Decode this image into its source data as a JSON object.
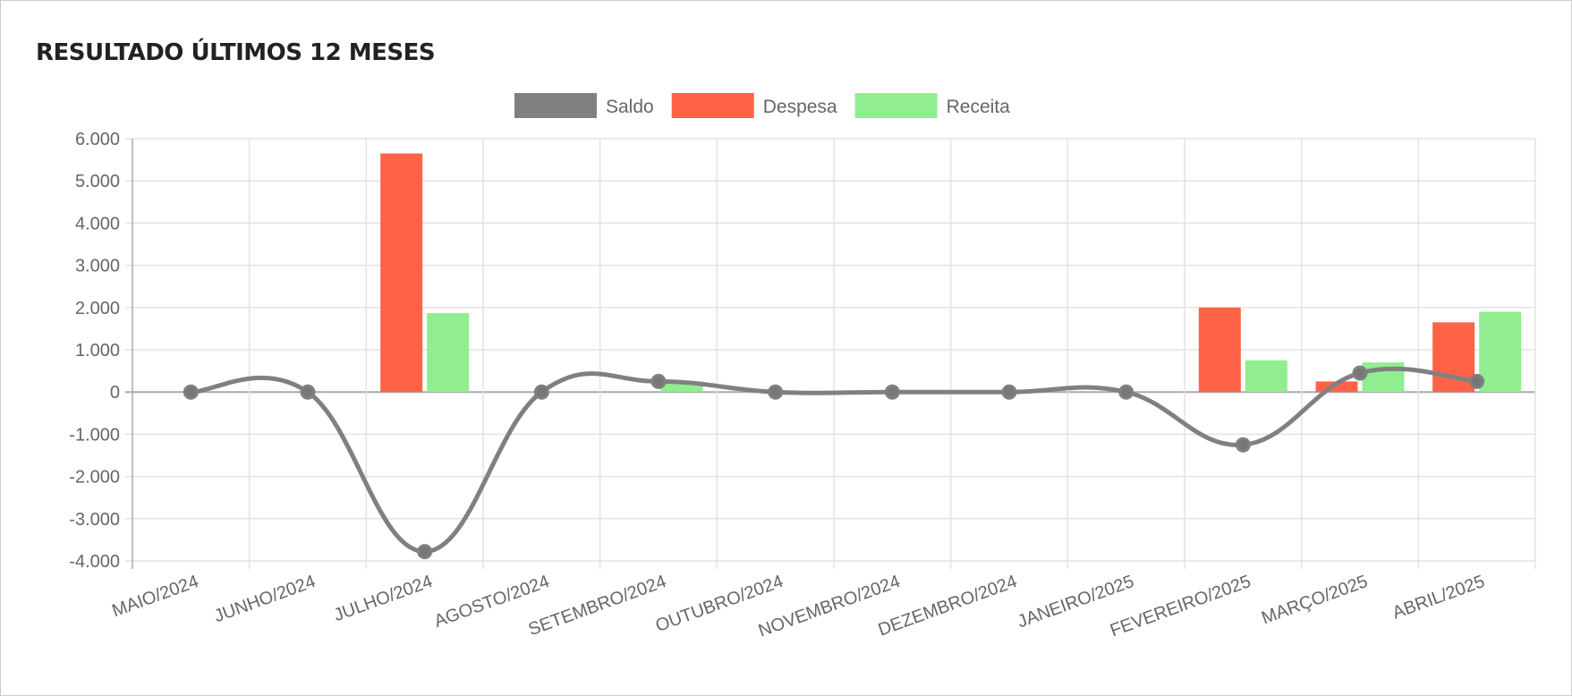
{
  "title": "RESULTADO ÚLTIMOS 12 MESES",
  "chart_data": {
    "type": "bar",
    "title": "RESULTADO ÚLTIMOS 12 MESES",
    "categories": [
      "MAIO/2024",
      "JUNHO/2024",
      "JULHO/2024",
      "AGOSTO/2024",
      "SETEMBRO/2024",
      "OUTUBRO/2024",
      "NOVEMBRO/2024",
      "DEZEMBRO/2024",
      "JANEIRO/2025",
      "FEVEREIRO/2025",
      "MARÇO/2025",
      "ABRIL/2025"
    ],
    "series": [
      {
        "name": "Saldo",
        "type": "line",
        "color": "#808080",
        "values": [
          0,
          0,
          -3780,
          0,
          250,
          0,
          0,
          0,
          0,
          -1250,
          450,
          250
        ]
      },
      {
        "name": "Despesa",
        "type": "bar",
        "color": "#ff6347",
        "values": [
          0,
          0,
          5650,
          0,
          0,
          0,
          0,
          0,
          0,
          2000,
          250,
          1650
        ]
      },
      {
        "name": "Receita",
        "type": "bar",
        "color": "#90ee90",
        "values": [
          0,
          0,
          1870,
          0,
          250,
          0,
          0,
          0,
          0,
          750,
          700,
          1900
        ]
      }
    ],
    "ylim": [
      -4000,
      6000
    ],
    "yticks": [
      6000,
      5000,
      4000,
      3000,
      2000,
      1000,
      0,
      -1000,
      -2000,
      -3000,
      -4000
    ],
    "ytick_labels": [
      "6.000",
      "5.000",
      "4.000",
      "3.000",
      "2.000",
      "1.000",
      "0",
      "-1.000",
      "-2.000",
      "-3.000",
      "-4.000"
    ],
    "grid": true,
    "legend": "top-center"
  }
}
